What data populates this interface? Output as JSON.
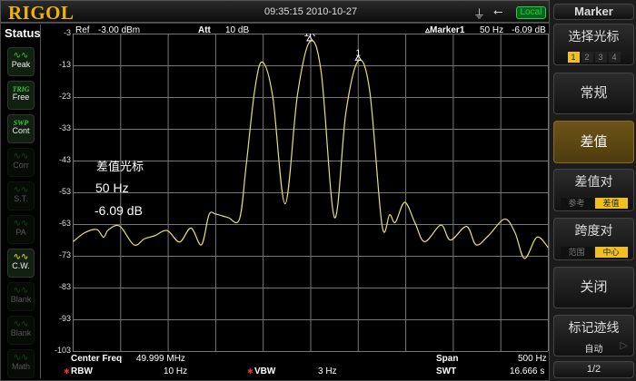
{
  "header": {
    "logo": "RIGOL",
    "datetime": "09:35:15 2010-10-27",
    "remote_status": "Local",
    "icons": [
      "probe-icon",
      "usb-icon"
    ]
  },
  "status": {
    "title": "Status",
    "buttons": [
      {
        "top": "",
        "label": "Peak",
        "state": "active",
        "icon": "peak-icon"
      },
      {
        "top": "TRIG",
        "label": "Free",
        "state": "active",
        "icon": ""
      },
      {
        "top": "SWP",
        "label": "Cont",
        "state": "active",
        "icon": ""
      },
      {
        "top": "",
        "label": "Corr",
        "state": "disabled",
        "icon": "corr-icon"
      },
      {
        "top": "",
        "label": "S.T.",
        "state": "disabled",
        "icon": "st-icon"
      },
      {
        "top": "",
        "label": "PA",
        "state": "disabled",
        "icon": "pa-icon"
      },
      {
        "top": "",
        "label": "C.W.",
        "state": "active",
        "icon": "cw-icon"
      },
      {
        "top": "",
        "label": "Blank",
        "state": "disabled",
        "icon": "blank-icon"
      },
      {
        "top": "",
        "label": "Blank",
        "state": "disabled",
        "icon": "blank-icon"
      },
      {
        "top": "",
        "label": "Math",
        "state": "disabled",
        "icon": "math-icon"
      }
    ]
  },
  "display": {
    "ref_label": "Ref",
    "ref_value": "-3.00 dBm",
    "att_label": "Att",
    "att_value": "10 dB",
    "marker_readout": "▵Marker1",
    "marker_freq": "50 Hz",
    "marker_amp": "-6.09 dB",
    "overlay": {
      "title": "差值光标",
      "freq": "50 Hz",
      "amp": "-6.09 dB"
    },
    "marker_labels": {
      "ref": "1R",
      "delta": "1"
    }
  },
  "footer": {
    "center_label": "Center Freq",
    "center_value": "49.999 MHz",
    "span_label": "Span",
    "span_value": "500 Hz",
    "rbw_label": "RBW",
    "rbw_value": "10 Hz",
    "vbw_label": "VBW",
    "vbw_value": "3 Hz",
    "swt_label": "SWT",
    "swt_value": "16.666 s"
  },
  "menu": {
    "title": "Marker",
    "select_label": "选择光标",
    "select_options": [
      "1",
      "2",
      "3",
      "4"
    ],
    "selected": "1",
    "normal": "常规",
    "delta": "差值",
    "delta_pair": "差值对",
    "delta_pair_opts": [
      "参考",
      "差值"
    ],
    "delta_pair_sel": "差值",
    "span_pair": "跨度对",
    "span_pair_opts": [
      "范围",
      "中心"
    ],
    "span_pair_sel": "中心",
    "off": "关闭",
    "trace": "标记迹线",
    "trace_value": "自动",
    "page": "1/2"
  },
  "chart_data": {
    "type": "line",
    "xlabel": "",
    "ylabel": "",
    "xlim": [
      49998750,
      49999250
    ],
    "ylim": [
      -103,
      -3
    ],
    "y_ticks": [
      "-3",
      "-13",
      "-23",
      "-33",
      "-43",
      "-53",
      "-63",
      "-73",
      "-83",
      "-93",
      "-103"
    ],
    "grid": true,
    "trace_color": "#e8e070",
    "series": [
      {
        "x": [
          49998750,
          49998762,
          49998775,
          49998782,
          49998787,
          49998799,
          49998814,
          49998825,
          49998836,
          49998849,
          49998862,
          49998874,
          49998885,
          49998893,
          49998900,
          49998913,
          49998925,
          49998932,
          49998941,
          49998949,
          49998960,
          49998973,
          49998986,
          49998999,
          49999011,
          49999025,
          49999037,
          49999050,
          49999062,
          49999075,
          49999083,
          49999089,
          49999099,
          49999110,
          49999120,
          49999137,
          49999147,
          49999164,
          49999174,
          49999187,
          49999204,
          49999215,
          49999225,
          49999238,
          49999250
        ],
        "y": [
          -68.4,
          -65.6,
          -64.6,
          -67,
          -64.7,
          -63.5,
          -69.4,
          -67.5,
          -66.5,
          -64.9,
          -68.5,
          -64.1,
          -69.4,
          -59.9,
          -59.7,
          -60.8,
          -61.3,
          -44.6,
          -20.8,
          -11.8,
          -22.7,
          -56.5,
          -22.2,
          -5.4,
          -15,
          -60.8,
          -27.7,
          -11.5,
          -20.8,
          -63.2,
          -59.9,
          -62.3,
          -56,
          -62.7,
          -68.4,
          -63.2,
          -67.9,
          -63.6,
          -69.4,
          -66.5,
          -61.3,
          -65.6,
          -73.7,
          -67,
          -70.3
        ]
      }
    ],
    "markers": [
      {
        "label": "1R",
        "x": 49998999,
        "y": -5.4
      },
      {
        "label": "1",
        "x": 49999050,
        "y": -11.5
      }
    ]
  }
}
